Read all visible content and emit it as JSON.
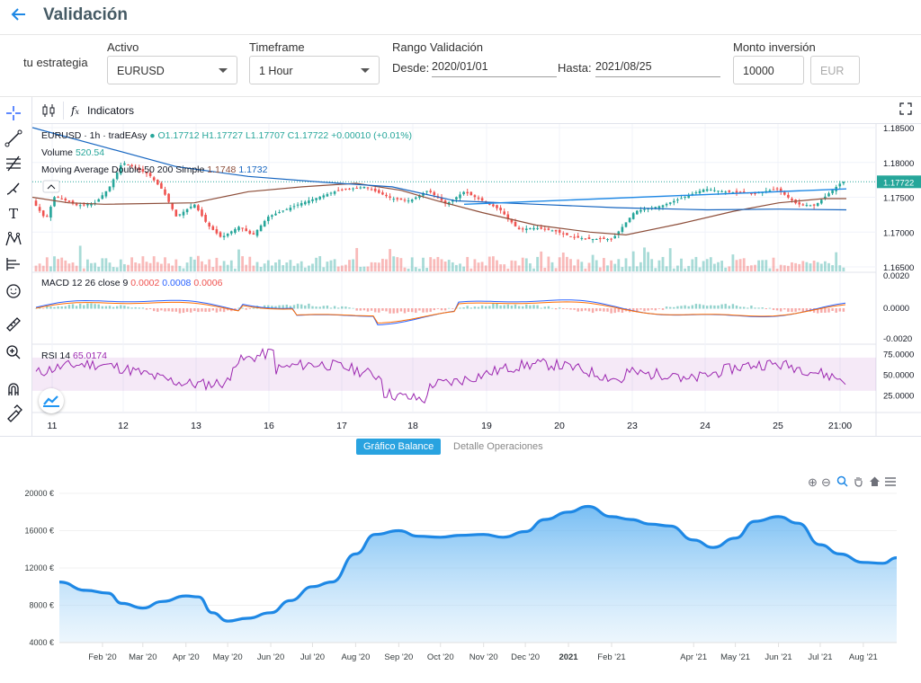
{
  "header": {
    "title": "Validación",
    "back_icon": "back-arrow-icon"
  },
  "form": {
    "strategy_label": "tu estrategia",
    "asset_label": "Activo",
    "asset_value": "EURUSD",
    "timeframe_label": "Timeframe",
    "timeframe_value": "1 Hour",
    "range_label": "Rango Validación",
    "from_label": "Desde:",
    "from_value": "2020/01/01",
    "to_label": "Hasta:",
    "to_value": "2021/08/25",
    "amount_label": "Monto inversión",
    "amount_value": "10000",
    "currency_placeholder": "EUR"
  },
  "tv": {
    "indicators_label": "Indicators",
    "symbol_legend": "EURUSD · 1h · tradEAsy",
    "ohlc": {
      "o": "O1.17712",
      "h": "H1.17727",
      "l": "L1.17707",
      "c": "C1.17722",
      "chg": "+0.00010 (+0.01%)"
    },
    "volume_label": "Volume",
    "volume_value": "520.54",
    "ma_label": "Moving Average Double 50 200 Simple",
    "ma_v1": "1.1748",
    "ma_v2": "1.1732",
    "macd_label": "MACD 12 26 close 9",
    "macd_v1": "0.0002",
    "macd_v2": "0.0008",
    "macd_v3": "0.0006",
    "rsi_label": "RSI 14",
    "rsi_value": "65.0174",
    "price_axis": [
      "1.18500",
      "1.18000",
      "1.17722",
      "1.17500",
      "1.17000",
      "1.16500"
    ],
    "macd_axis": [
      "0.0020",
      "0.0000",
      "-0.0020"
    ],
    "rsi_axis": [
      "75.0000",
      "50.0000",
      "25.0000"
    ],
    "time_axis": [
      "11",
      "12",
      "13",
      "16",
      "17",
      "18",
      "19",
      "20",
      "23",
      "24",
      "25",
      "21:00"
    ],
    "colors": {
      "up": "#26a69a",
      "down": "#ef5350",
      "ma_fast": "#1565c0",
      "ma_slow": "#8d4e3a",
      "rsi": "#9c27b0",
      "macd": "#2962ff",
      "signal": "#ff6d00"
    }
  },
  "tabs": {
    "balance": "Gráfico Balance",
    "details": "Detalle Operaciones"
  },
  "chart_data": {
    "type": "area",
    "title": "",
    "xlabel": "",
    "ylabel": "",
    "y_ticks": [
      "20000 €",
      "16000 €",
      "12000 €",
      "8000 €",
      "4000 €"
    ],
    "ylim": [
      4000,
      20000
    ],
    "x_ticks": [
      "Feb '20",
      "Mar '20",
      "Apr '20",
      "May '20",
      "Jun '20",
      "Jul '20",
      "Aug '20",
      "Sep '20",
      "Oct '20",
      "Nov '20",
      "Dec '20",
      "2021",
      "Feb '21",
      "Apr '21",
      "May '21",
      "Jun '21",
      "Jul '21",
      "Aug '21"
    ],
    "x": [
      "2020-01-01",
      "2020-01-20",
      "2020-02-05",
      "2020-02-15",
      "2020-03-01",
      "2020-03-15",
      "2020-04-01",
      "2020-04-10",
      "2020-04-20",
      "2020-05-01",
      "2020-05-15",
      "2020-06-01",
      "2020-06-15",
      "2020-07-01",
      "2020-07-15",
      "2020-08-01",
      "2020-08-15",
      "2020-09-01",
      "2020-09-15",
      "2020-10-01",
      "2020-10-15",
      "2020-11-01",
      "2020-11-15",
      "2020-12-01",
      "2020-12-15",
      "2021-01-01",
      "2021-01-15",
      "2021-02-01",
      "2021-02-15",
      "2021-03-01",
      "2021-03-15",
      "2021-04-01",
      "2021-04-15",
      "2021-05-01",
      "2021-05-15",
      "2021-06-01",
      "2021-06-15",
      "2021-07-01",
      "2021-07-15",
      "2021-08-01",
      "2021-08-15",
      "2021-08-25"
    ],
    "values": [
      10500,
      9600,
      9300,
      8200,
      7700,
      8400,
      9000,
      8900,
      7200,
      6300,
      6600,
      7200,
      8500,
      10000,
      10500,
      13500,
      15600,
      16000,
      15400,
      15300,
      15500,
      15600,
      15300,
      15900,
      17200,
      18000,
      18600,
      17500,
      17200,
      16700,
      16500,
      15000,
      14200,
      15200,
      17000,
      17500,
      16800,
      14500,
      13500,
      12600,
      12500,
      13100
    ],
    "color": "#1e88e5"
  }
}
